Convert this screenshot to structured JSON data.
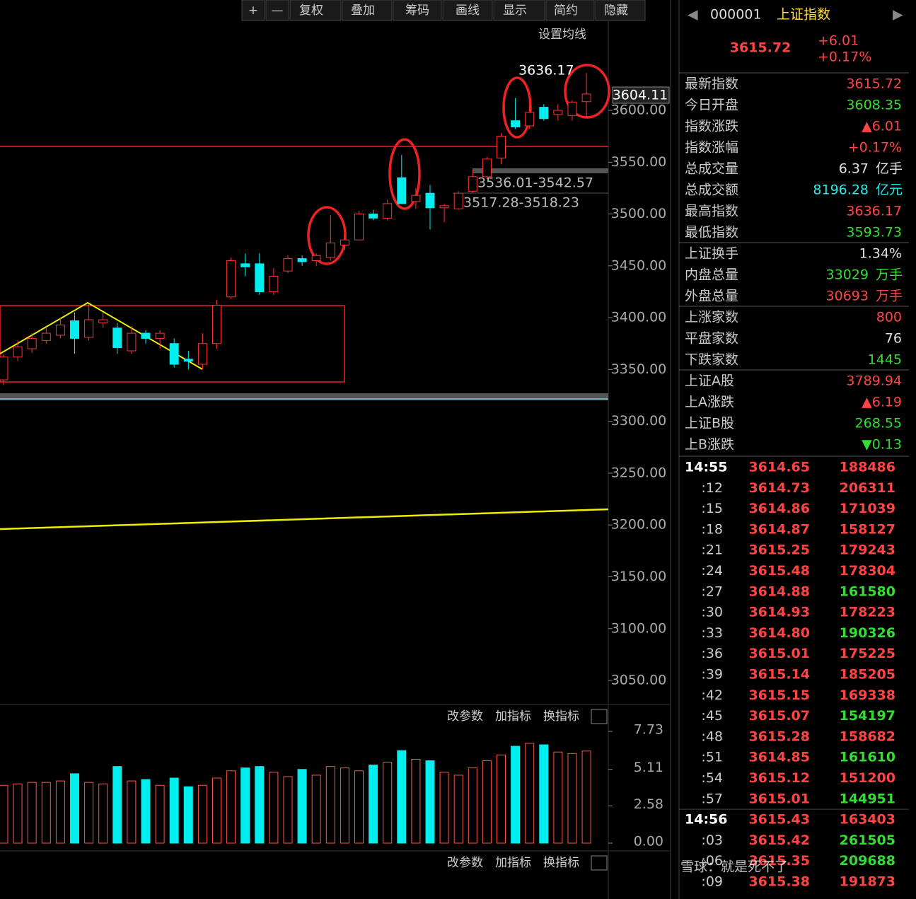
{
  "toolbar": [
    "+",
    "—",
    "复权",
    "叠加",
    "筹码",
    "画线",
    "显示",
    "简约",
    "隐藏"
  ],
  "ma_setting": "设置均线",
  "price_chart": {
    "type": "candlestick",
    "yticks": [
      {
        "value": 3600,
        "label": "3600.00"
      },
      {
        "value": 3550,
        "label": "3550.00"
      },
      {
        "value": 3500,
        "label": "3500.00"
      },
      {
        "value": 3450,
        "label": "3450.00"
      },
      {
        "value": 3400,
        "label": "3400.00"
      },
      {
        "value": 3350,
        "label": "3350.00"
      },
      {
        "value": 3300,
        "label": "3300.00"
      },
      {
        "value": 3250,
        "label": "3250.00"
      },
      {
        "value": 3200,
        "label": "3200.00"
      },
      {
        "value": 3150,
        "label": "3150.00"
      },
      {
        "value": 3100,
        "label": "3100.00"
      },
      {
        "value": 3050,
        "label": "3050.00"
      }
    ],
    "open": [
      3340,
      3362,
      3370,
      3378,
      3383,
      3397,
      3381,
      3395,
      3390,
      3368,
      3385,
      3380,
      3375,
      3360,
      3355,
      3375,
      3420,
      3452,
      3452,
      3425,
      3445,
      3457,
      3455,
      3458,
      3470,
      3475,
      3500,
      3496,
      3535,
      3512,
      3520,
      3506,
      3505,
      3522,
      3536,
      3554,
      3590,
      3585,
      3603,
      3596,
      3595,
      3608.35
    ],
    "close": [
      3362,
      3372,
      3380,
      3385,
      3393,
      3380,
      3398,
      3398,
      3371,
      3385,
      3380,
      3385,
      3355,
      3358,
      3375,
      3412,
      3455,
      3449,
      3425,
      3440,
      3457,
      3454,
      3460,
      3472,
      3475,
      3500,
      3496,
      3510,
      3510,
      3518,
      3506,
      3508,
      3520,
      3536,
      3553,
      3575,
      3584,
      3598,
      3592,
      3600,
      3608,
      3615.72
    ],
    "high": [
      3365,
      3378,
      3385,
      3390,
      3400,
      3405,
      3413,
      3405,
      3395,
      3392,
      3388,
      3388,
      3380,
      3368,
      3385,
      3417,
      3458,
      3462,
      3462,
      3448,
      3460,
      3460,
      3462,
      3499,
      3480,
      3503,
      3504,
      3514,
      3557,
      3525,
      3528,
      3510,
      3522,
      3542,
      3555,
      3578,
      3612,
      3605,
      3606,
      3606,
      3610,
      3636.17
    ],
    "low": [
      3335,
      3358,
      3366,
      3375,
      3380,
      3365,
      3378,
      3390,
      3365,
      3365,
      3375,
      3370,
      3352,
      3350,
      3350,
      3370,
      3418,
      3440,
      3422,
      3422,
      3443,
      3450,
      3450,
      3455,
      3465,
      3475,
      3494,
      3494,
      3510,
      3505,
      3485,
      3492,
      3504,
      3520,
      3534,
      3548,
      3582,
      3582,
      3590,
      3590,
      3590,
      3593.73
    ],
    "high_label": "3636.17",
    "current_label": "3604.11",
    "range_labels": [
      "3536.01-3542.57",
      "3517.28-3518.23"
    ]
  },
  "volume_chart": {
    "type": "bar",
    "buttons": [
      "改参数",
      "加指标",
      "换指标"
    ],
    "yticks": [
      {
        "value": 7.73,
        "label": "7.73"
      },
      {
        "value": 5.11,
        "label": "5.11"
      },
      {
        "value": 2.58,
        "label": "2.58"
      },
      {
        "value": 0,
        "label": "0.00"
      }
    ],
    "values": [
      4.0,
      4.1,
      4.2,
      4.2,
      4.3,
      4.8,
      4.2,
      4.1,
      5.3,
      4.3,
      4.4,
      4.0,
      4.5,
      3.9,
      4.0,
      4.5,
      5.0,
      5.2,
      5.3,
      4.9,
      4.6,
      5.1,
      4.7,
      5.3,
      5.2,
      5.0,
      5.4,
      5.6,
      6.4,
      5.8,
      5.7,
      4.9,
      4.7,
      5.2,
      5.7,
      6.1,
      6.7,
      6.9,
      6.8,
      6.3,
      6.2,
      6.37
    ]
  },
  "indicator2": {
    "buttons": [
      "改参数",
      "加指标",
      "换指标"
    ]
  },
  "quote": {
    "code": "000001",
    "name": "上证指数",
    "price": "3615.72",
    "change": "+6.01",
    "pct": "+0.17%",
    "rows": [
      {
        "label": "最新指数",
        "value": "3615.72",
        "color": "#ff4444"
      },
      {
        "label": "今日开盘",
        "value": "3608.35",
        "color": "#33dd33"
      },
      {
        "label": "指数涨跌",
        "value": "▲6.01",
        "color": "#ff4444"
      },
      {
        "label": "指数涨幅",
        "value": "+0.17%",
        "color": "#ff4444"
      },
      {
        "label": "总成交量",
        "value": "6.37",
        "unit": "亿手",
        "color": "#e0e0e0"
      },
      {
        "label": "总成交额",
        "value": "8196.28",
        "unit": "亿元",
        "color": "#22eeee"
      },
      {
        "label": "最高指数",
        "value": "3636.17",
        "color": "#ff4444"
      },
      {
        "label": "最低指数",
        "value": "3593.73",
        "color": "#33dd33"
      },
      {
        "label": "上证换手",
        "value": "1.34%",
        "color": "#e0e0e0"
      },
      {
        "label": "内盘总量",
        "value": "33029",
        "unit": "万手",
        "color": "#33dd33"
      },
      {
        "label": "外盘总量",
        "value": "30693",
        "unit": "万手",
        "color": "#ff4444"
      },
      {
        "label": "上涨家数",
        "value": "800",
        "color": "#ff4444"
      },
      {
        "label": "平盘家数",
        "value": "76",
        "color": "#e0e0e0"
      },
      {
        "label": "下跌家数",
        "value": "1445",
        "color": "#33dd33"
      },
      {
        "label": "上证A股",
        "value": "3789.94",
        "color": "#ff4444"
      },
      {
        "label": "上A涨跌",
        "value": "▲6.19",
        "color": "#ff4444"
      },
      {
        "label": "上证B股",
        "value": "268.55",
        "color": "#33dd33"
      },
      {
        "label": "上B涨跌",
        "value": "▼0.13",
        "color": "#33dd33"
      }
    ]
  },
  "ticks": [
    {
      "time": "14:55",
      "price": "3614.65",
      "volume": "188486",
      "color": "#ff4444"
    },
    {
      "time": ":12",
      "price": "3614.73",
      "volume": "206311",
      "color": "#ff4444"
    },
    {
      "time": ":15",
      "price": "3614.86",
      "volume": "171039",
      "color": "#ff4444"
    },
    {
      "time": ":18",
      "price": "3614.87",
      "volume": "158127",
      "color": "#ff4444"
    },
    {
      "time": ":21",
      "price": "3615.25",
      "volume": "179243",
      "color": "#ff4444"
    },
    {
      "time": ":24",
      "price": "3615.48",
      "volume": "178304",
      "color": "#ff4444"
    },
    {
      "time": ":27",
      "price": "3614.88",
      "volume": "161580",
      "color": "#33dd33"
    },
    {
      "time": ":30",
      "price": "3614.93",
      "volume": "178223",
      "color": "#ff4444"
    },
    {
      "time": ":33",
      "price": "3614.80",
      "volume": "190326",
      "color": "#33dd33"
    },
    {
      "time": ":36",
      "price": "3615.01",
      "volume": "175225",
      "color": "#ff4444"
    },
    {
      "time": ":39",
      "price": "3615.14",
      "volume": "185205",
      "color": "#ff4444"
    },
    {
      "time": ":42",
      "price": "3615.15",
      "volume": "169338",
      "color": "#ff4444"
    },
    {
      "time": ":45",
      "price": "3615.07",
      "volume": "154197",
      "color": "#33dd33"
    },
    {
      "time": ":48",
      "price": "3615.28",
      "volume": "158682",
      "color": "#ff4444"
    },
    {
      "time": ":51",
      "price": "3614.85",
      "volume": "161610",
      "color": "#33dd33"
    },
    {
      "time": ":54",
      "price": "3615.12",
      "volume": "151200",
      "color": "#ff4444"
    },
    {
      "time": ":57",
      "price": "3615.01",
      "volume": "144951",
      "color": "#33dd33"
    },
    {
      "time": "14:56",
      "price": "3615.43",
      "volume": "163403",
      "color": "#ff4444"
    },
    {
      "time": ":03",
      "price": "3615.42",
      "volume": "261505",
      "color": "#33dd33"
    },
    {
      "time": ":06",
      "price": "3615.35",
      "volume": "209688",
      "color": "#33dd33"
    },
    {
      "time": ":09",
      "price": "3615.38",
      "volume": "191873",
      "color": "#ff4444"
    }
  ],
  "watermark": "雪球：就是死不了"
}
